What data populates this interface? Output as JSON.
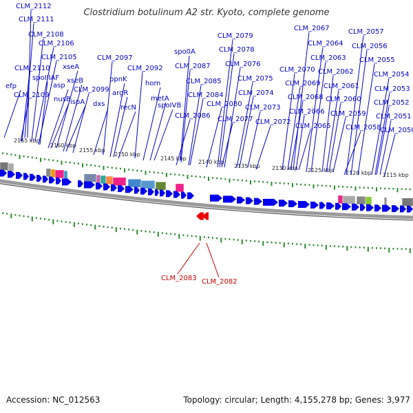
{
  "title": "Clostridium botulinum A2 str. Kyoto, complete genome",
  "accession_text": "Accession: NC_012563",
  "topology_text": "Topology: circular; Length: 4,155,278 bp; Genes: 3,977",
  "colors": {
    "forward_gene": "#0000ee",
    "reverse_gene": "#ee0000",
    "label_forward": "#0000cc",
    "label_reverse": "#cc0000",
    "tick": "#2a8a2a",
    "backbone": "#777777"
  },
  "scale_labels": [
    "2165 kbp",
    "2160 kbp",
    "2155 kbp",
    "2150 kbp",
    "2145 kbp",
    "2140 kbp",
    "2135 kbp",
    "2130 kbp",
    "2125 kbp",
    "2120 kbp",
    "2115 kbp"
  ],
  "forward_labels": [
    "CLM_2112",
    "CLM_2111",
    "CLM_2108",
    "CLM_2106",
    "CLM_2105",
    "spoIIIAF",
    "CLM_2110",
    "efp",
    "CLM_2109",
    "xseA",
    "asp",
    "nusB",
    "xseB",
    "ispA",
    "CLM_2099",
    "dxs",
    "CLM_2097",
    "ppnK",
    "argR",
    "recN",
    "CLM_2092",
    "hom",
    "metA",
    "spoIVB",
    "spo0A",
    "CLM_2087",
    "CLM_2086",
    "CLM_2085",
    "CLM_2084",
    "CLM_2080",
    "CLM_2079",
    "CLM_2078",
    "CLM_2077",
    "CLM_2076",
    "CLM_2075",
    "CLM_2074",
    "CLM_2073",
    "CLM_2072",
    "CLM_2070",
    "CLM_2069",
    "CLM_2068",
    "CLM_2067",
    "CLM_2066",
    "CLM_2065",
    "CLM_2064",
    "CLM_2063",
    "CLM_2062",
    "CLM_2061",
    "CLM_2060",
    "CLM_2059",
    "CLM_2058",
    "CLM_2057",
    "CLM_2056",
    "CLM_2055",
    "CLM_2054",
    "CLM_2053",
    "CLM_2052",
    "CLM_2051",
    "CLM_2050"
  ],
  "reverse_labels": [
    "CLM_2083",
    "CLM_2082"
  ]
}
